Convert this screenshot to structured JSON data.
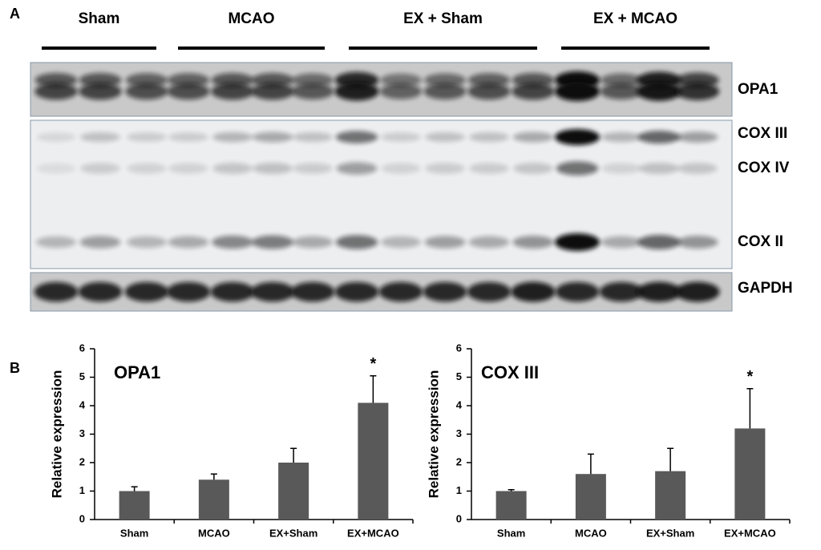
{
  "blot": {
    "panel_label": "A",
    "groups": [
      "Sham",
      "MCAO",
      "EX + Sham",
      "EX + MCAO"
    ],
    "bands": [
      "OPA1",
      "COX III",
      "COX IV",
      "COX II",
      "GAPDH"
    ]
  },
  "panel_label_b": "B",
  "chart_data": [
    {
      "type": "bar",
      "title": "OPA1",
      "y_label": "Relative expression",
      "categories": [
        "Sham",
        "MCAO",
        "EX+Sham",
        "EX+MCAO"
      ],
      "series": [
        {
          "color": "#595959",
          "values": [
            1.0,
            1.4,
            2.0,
            4.1
          ],
          "errors": [
            0.15,
            0.2,
            0.5,
            0.95
          ]
        }
      ],
      "annotations": [
        {
          "category": "EX+MCAO",
          "text": "*"
        }
      ],
      "ylim": [
        0,
        6
      ],
      "yticks": [
        0,
        1,
        2,
        3,
        4,
        5,
        6
      ]
    },
    {
      "type": "bar",
      "title": "COX III",
      "y_label": "Relative expression",
      "categories": [
        "Sham",
        "MCAO",
        "EX+Sham",
        "EX+MCAO"
      ],
      "series": [
        {
          "color": "#595959",
          "values": [
            1.0,
            1.6,
            1.7,
            3.2
          ],
          "errors": [
            0.05,
            0.7,
            0.8,
            1.4
          ]
        }
      ],
      "annotations": [
        {
          "category": "EX+MCAO",
          "text": "*"
        }
      ],
      "ylim": [
        0,
        6
      ],
      "yticks": [
        0,
        1,
        2,
        3,
        4,
        5,
        6
      ]
    }
  ]
}
